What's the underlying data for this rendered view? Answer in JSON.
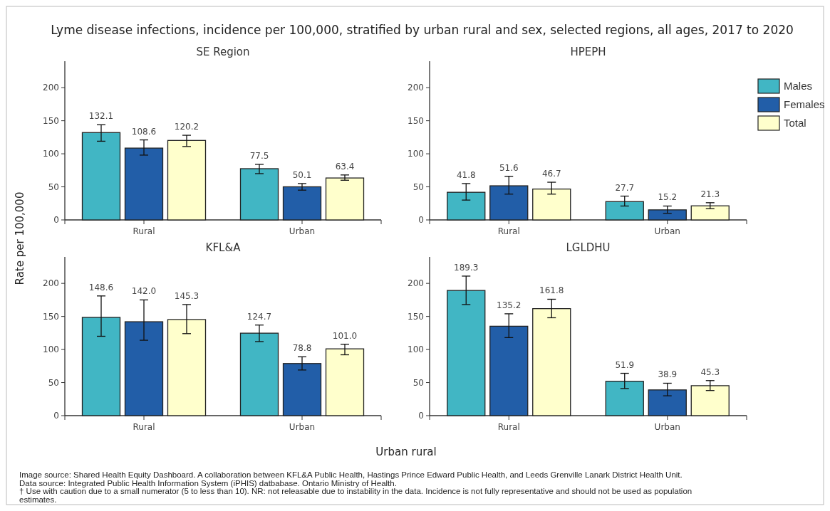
{
  "chart_data": [
    {
      "type": "bar",
      "title": "Lyme disease infections, incidence per 100,000, stratified by urban rural and sex, selected regions, all ages, 2017 to 2020",
      "subtitle": "SE Region",
      "xlabel": "Urban rural",
      "ylabel": "Rate per 100,000",
      "categories": [
        "Rural",
        "Urban"
      ],
      "ylim": [
        0,
        240
      ],
      "yticks": [
        0,
        50,
        100,
        150,
        200
      ],
      "grid": false,
      "legend": false,
      "annotations": [
        "Image source: Shared Health Equity Dashboard. A collaboration between KFL&A Public Health, Hastings Prince Edward Public Health, and Leeds Grenville Lanark District Health Unit.",
        "Data source: Integrated Public Health Information System (iPHIS) datbabase. Ontario Ministry of Health.",
        "† Use with caution due to a small numerator (5 to less than 10). NR: not releasable due to instability in the data. Incidence is not fully representative and should not be used as population estimates."
      ],
      "series": [
        {
          "color": "#41b6c4",
          "values": [
            132.1,
            77.5
          ],
          "value_labels": [
            "132.1",
            "77.5"
          ],
          "errors": [
            [
              119,
              144
            ],
            [
              70,
              84
            ]
          ]
        },
        {
          "color": "#225ea8",
          "values": [
            108.6,
            50.1
          ],
          "value_labels": [
            "108.6",
            "50.1"
          ],
          "errors": [
            [
              98,
              121
            ],
            [
              45,
              55
            ]
          ]
        },
        {
          "color": "#ffffcc",
          "values": [
            120.2,
            63.4
          ],
          "value_labels": [
            "120.2",
            "63.4"
          ],
          "errors": [
            [
              111,
              128
            ],
            [
              60,
              68
            ]
          ]
        }
      ]
    },
    {
      "type": "bar",
      "subtitle": "HPEPH",
      "categories": [
        "Rural",
        "Urban"
      ],
      "ylim": [
        0,
        240
      ],
      "yticks": [
        0,
        50,
        100,
        150,
        200
      ],
      "grid": false,
      "legend": "top right",
      "series": [
        {
          "name": "Males",
          "color": "#41b6c4",
          "values": [
            41.8,
            27.7
          ],
          "value_labels": [
            "41.8",
            "27.7"
          ],
          "errors": [
            [
              30,
              55
            ],
            [
              21,
              36
            ]
          ]
        },
        {
          "name": "Females",
          "color": "#225ea8",
          "values": [
            51.6,
            15.2
          ],
          "value_labels": [
            "51.6",
            "15.2"
          ],
          "errors": [
            [
              39,
              66
            ],
            [
              10,
              21
            ]
          ]
        },
        {
          "name": "Total",
          "color": "#ffffcc",
          "values": [
            46.7,
            21.3
          ],
          "value_labels": [
            "46.7",
            "21.3"
          ],
          "errors": [
            [
              39,
              57
            ],
            [
              17,
              26
            ]
          ]
        }
      ]
    },
    {
      "type": "bar",
      "subtitle": "KFL&A",
      "categories": [
        "Rural",
        "Urban"
      ],
      "ylim": [
        0,
        240
      ],
      "yticks": [
        0,
        50,
        100,
        150,
        200
      ],
      "grid": false,
      "legend": false,
      "series": [
        {
          "color": "#41b6c4",
          "values": [
            148.6,
            124.7
          ],
          "value_labels": [
            "148.6",
            "124.7"
          ],
          "errors": [
            [
              120,
              181
            ],
            [
              112,
              137
            ]
          ]
        },
        {
          "color": "#225ea8",
          "values": [
            142.0,
            78.8
          ],
          "value_labels": [
            "142.0",
            "78.8"
          ],
          "errors": [
            [
              114,
              175
            ],
            [
              69,
              89
            ]
          ]
        },
        {
          "color": "#ffffcc",
          "values": [
            145.3,
            101.0
          ],
          "value_labels": [
            "145.3",
            "101.0"
          ],
          "errors": [
            [
              124,
              168
            ],
            [
              92,
              108
            ]
          ]
        }
      ]
    },
    {
      "type": "bar",
      "subtitle": "LGLDHU",
      "categories": [
        "Rural",
        "Urban"
      ],
      "ylim": [
        0,
        240
      ],
      "yticks": [
        0,
        50,
        100,
        150,
        200
      ],
      "grid": false,
      "legend": false,
      "series": [
        {
          "color": "#41b6c4",
          "values": [
            189.3,
            51.9
          ],
          "value_labels": [
            "189.3",
            "51.9"
          ],
          "errors": [
            [
              168,
              211
            ],
            [
              41,
              64
            ]
          ]
        },
        {
          "color": "#225ea8",
          "values": [
            135.2,
            38.9
          ],
          "value_labels": [
            "135.2",
            "38.9"
          ],
          "errors": [
            [
              118,
              154
            ],
            [
              30,
              49
            ]
          ]
        },
        {
          "color": "#ffffcc",
          "values": [
            161.8,
            45.3
          ],
          "value_labels": [
            "161.8",
            "45.3"
          ],
          "errors": [
            [
              148,
              176
            ],
            [
              38,
              53
            ]
          ]
        }
      ]
    }
  ]
}
